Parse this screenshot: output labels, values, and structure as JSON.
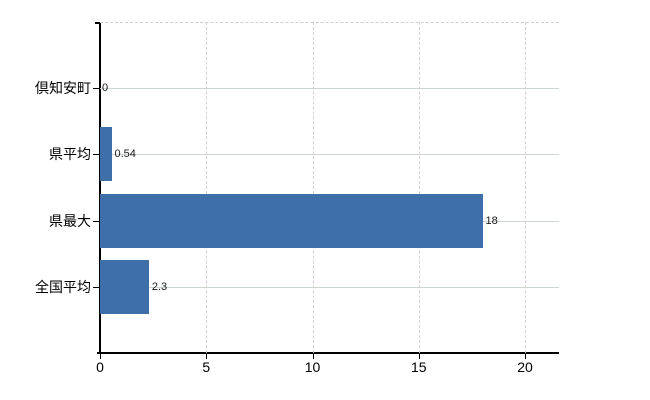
{
  "chart_data": {
    "type": "bar",
    "orientation": "horizontal",
    "title": "",
    "xlabel": "",
    "ylabel": "",
    "categories": [
      "倶知安町",
      "県平均",
      "県最大",
      "全国平均"
    ],
    "values": [
      0,
      0.54,
      18,
      2.3
    ],
    "value_labels": [
      "0",
      "0.54",
      "18",
      "2.3"
    ],
    "x_ticks": [
      0,
      5,
      10,
      15,
      20
    ],
    "x_tick_labels": [
      "0",
      "5",
      "10",
      "15",
      "20"
    ],
    "xlim": [
      0,
      21.6
    ],
    "grid": true,
    "legend": "none",
    "colors": {
      "bar": "#3e6fa9",
      "axis": "#000000",
      "gridline_horizontal": "#cdd6cd",
      "gridline_vertical": "#d6ced6",
      "label_text": "#000000",
      "value_text": "#1a1a1a",
      "background": "#ffffff"
    }
  }
}
